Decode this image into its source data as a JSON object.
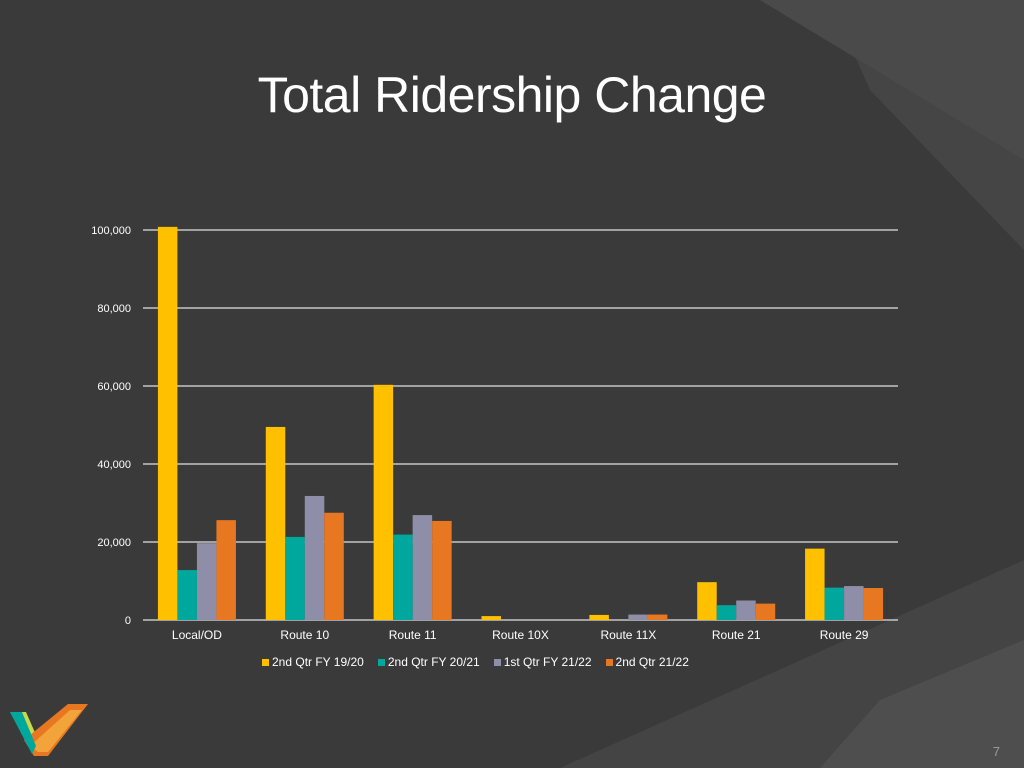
{
  "slide": {
    "title": "Total Ridership Change",
    "page_number": "7",
    "logo_icon": "vine-transit-logo"
  },
  "colors": {
    "background": "#3a3a3a",
    "gridline": "#e0e0e0",
    "series": [
      "#ffc000",
      "#00a79d",
      "#8e8ea8",
      "#e87722"
    ]
  },
  "chart_data": {
    "type": "bar",
    "title": "",
    "xlabel": "",
    "ylabel": "",
    "ylim": [
      0,
      100000
    ],
    "yticks": [
      0,
      20000,
      40000,
      60000,
      80000,
      100000
    ],
    "ytick_labels": [
      "0",
      "20,000",
      "40,000",
      "60,000",
      "80,000",
      "100,000"
    ],
    "grid": true,
    "legend_position": "bottom",
    "categories": [
      "Local/OD",
      "Route 10",
      "Route 11",
      "Route 10X",
      "Route 11X",
      "Route 21",
      "Route 29"
    ],
    "series": [
      {
        "name": "2nd Qtr FY 19/20",
        "values": [
          100800,
          49500,
          60300,
          1000,
          1300,
          9700,
          18300
        ]
      },
      {
        "name": "2nd Qtr FY 20/21",
        "values": [
          12800,
          21300,
          21900,
          0,
          0,
          3800,
          8300
        ]
      },
      {
        "name": "1st Qtr FY 21/22",
        "values": [
          19700,
          31800,
          26900,
          0,
          1400,
          5000,
          8700
        ]
      },
      {
        "name": "2nd Qtr 21/22",
        "values": [
          25600,
          27500,
          25400,
          0,
          1400,
          4200,
          8200
        ]
      }
    ]
  }
}
